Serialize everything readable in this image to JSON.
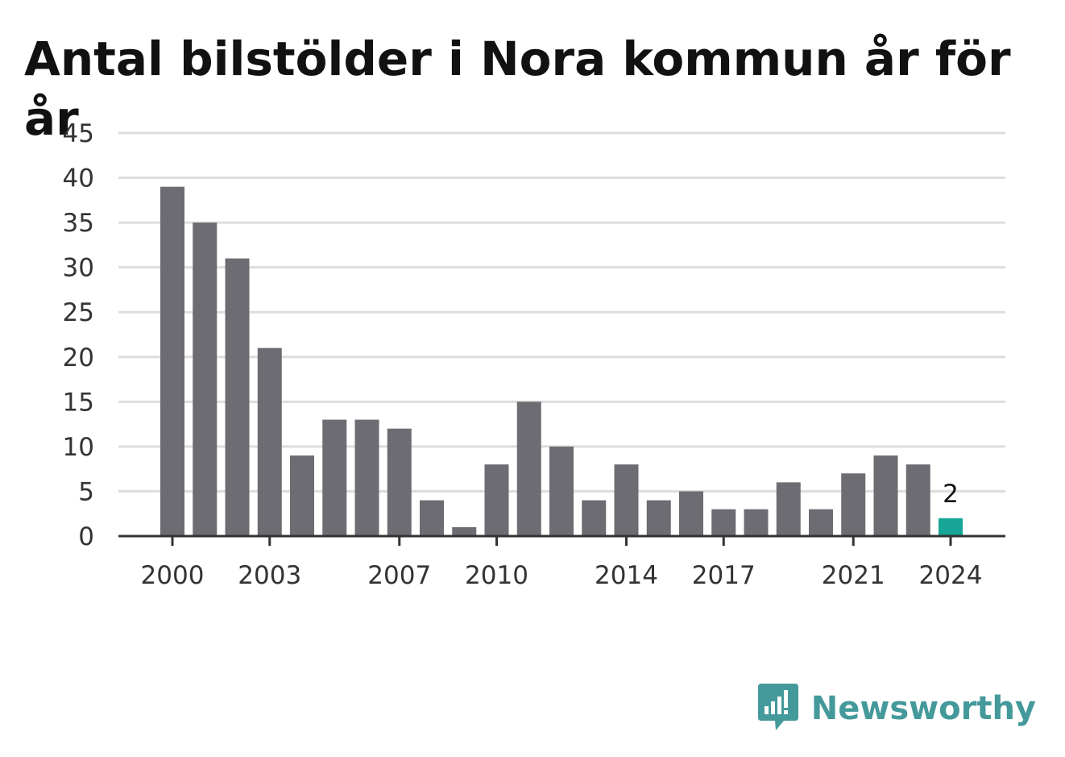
{
  "title": "Antal bilstölder i Nora kommun år för år",
  "brand": {
    "name": "Newsworthy",
    "logo_icon": "newsworthy-chart-bubble-icon",
    "color": "#44999b"
  },
  "colors": {
    "bar": "#6d6c72",
    "highlight": "#16a597",
    "grid": "#dddddd",
    "axis": "#333333"
  },
  "chart_data": {
    "type": "bar",
    "title": "Antal bilstölder i Nora kommun år för år",
    "xlabel": "",
    "ylabel": "",
    "categories": [
      2000,
      2001,
      2002,
      2003,
      2004,
      2005,
      2006,
      2007,
      2008,
      2009,
      2010,
      2011,
      2012,
      2013,
      2014,
      2015,
      2016,
      2017,
      2018,
      2019,
      2020,
      2021,
      2022,
      2023,
      2024
    ],
    "values": [
      39,
      35,
      31,
      21,
      9,
      13,
      13,
      12,
      4,
      1,
      8,
      15,
      10,
      4,
      8,
      4,
      5,
      3,
      3,
      6,
      3,
      7,
      9,
      8,
      2
    ],
    "ylim": [
      0,
      45
    ],
    "yticks": [
      0,
      5,
      10,
      15,
      20,
      25,
      30,
      35,
      40,
      45
    ],
    "xtick_labels": [
      2000,
      2003,
      2007,
      2010,
      2014,
      2017,
      2021,
      2024
    ],
    "highlight_category": 2024,
    "data_labels": [
      {
        "category": 2024,
        "text": "2"
      }
    ],
    "grid": true,
    "legend": "none"
  }
}
